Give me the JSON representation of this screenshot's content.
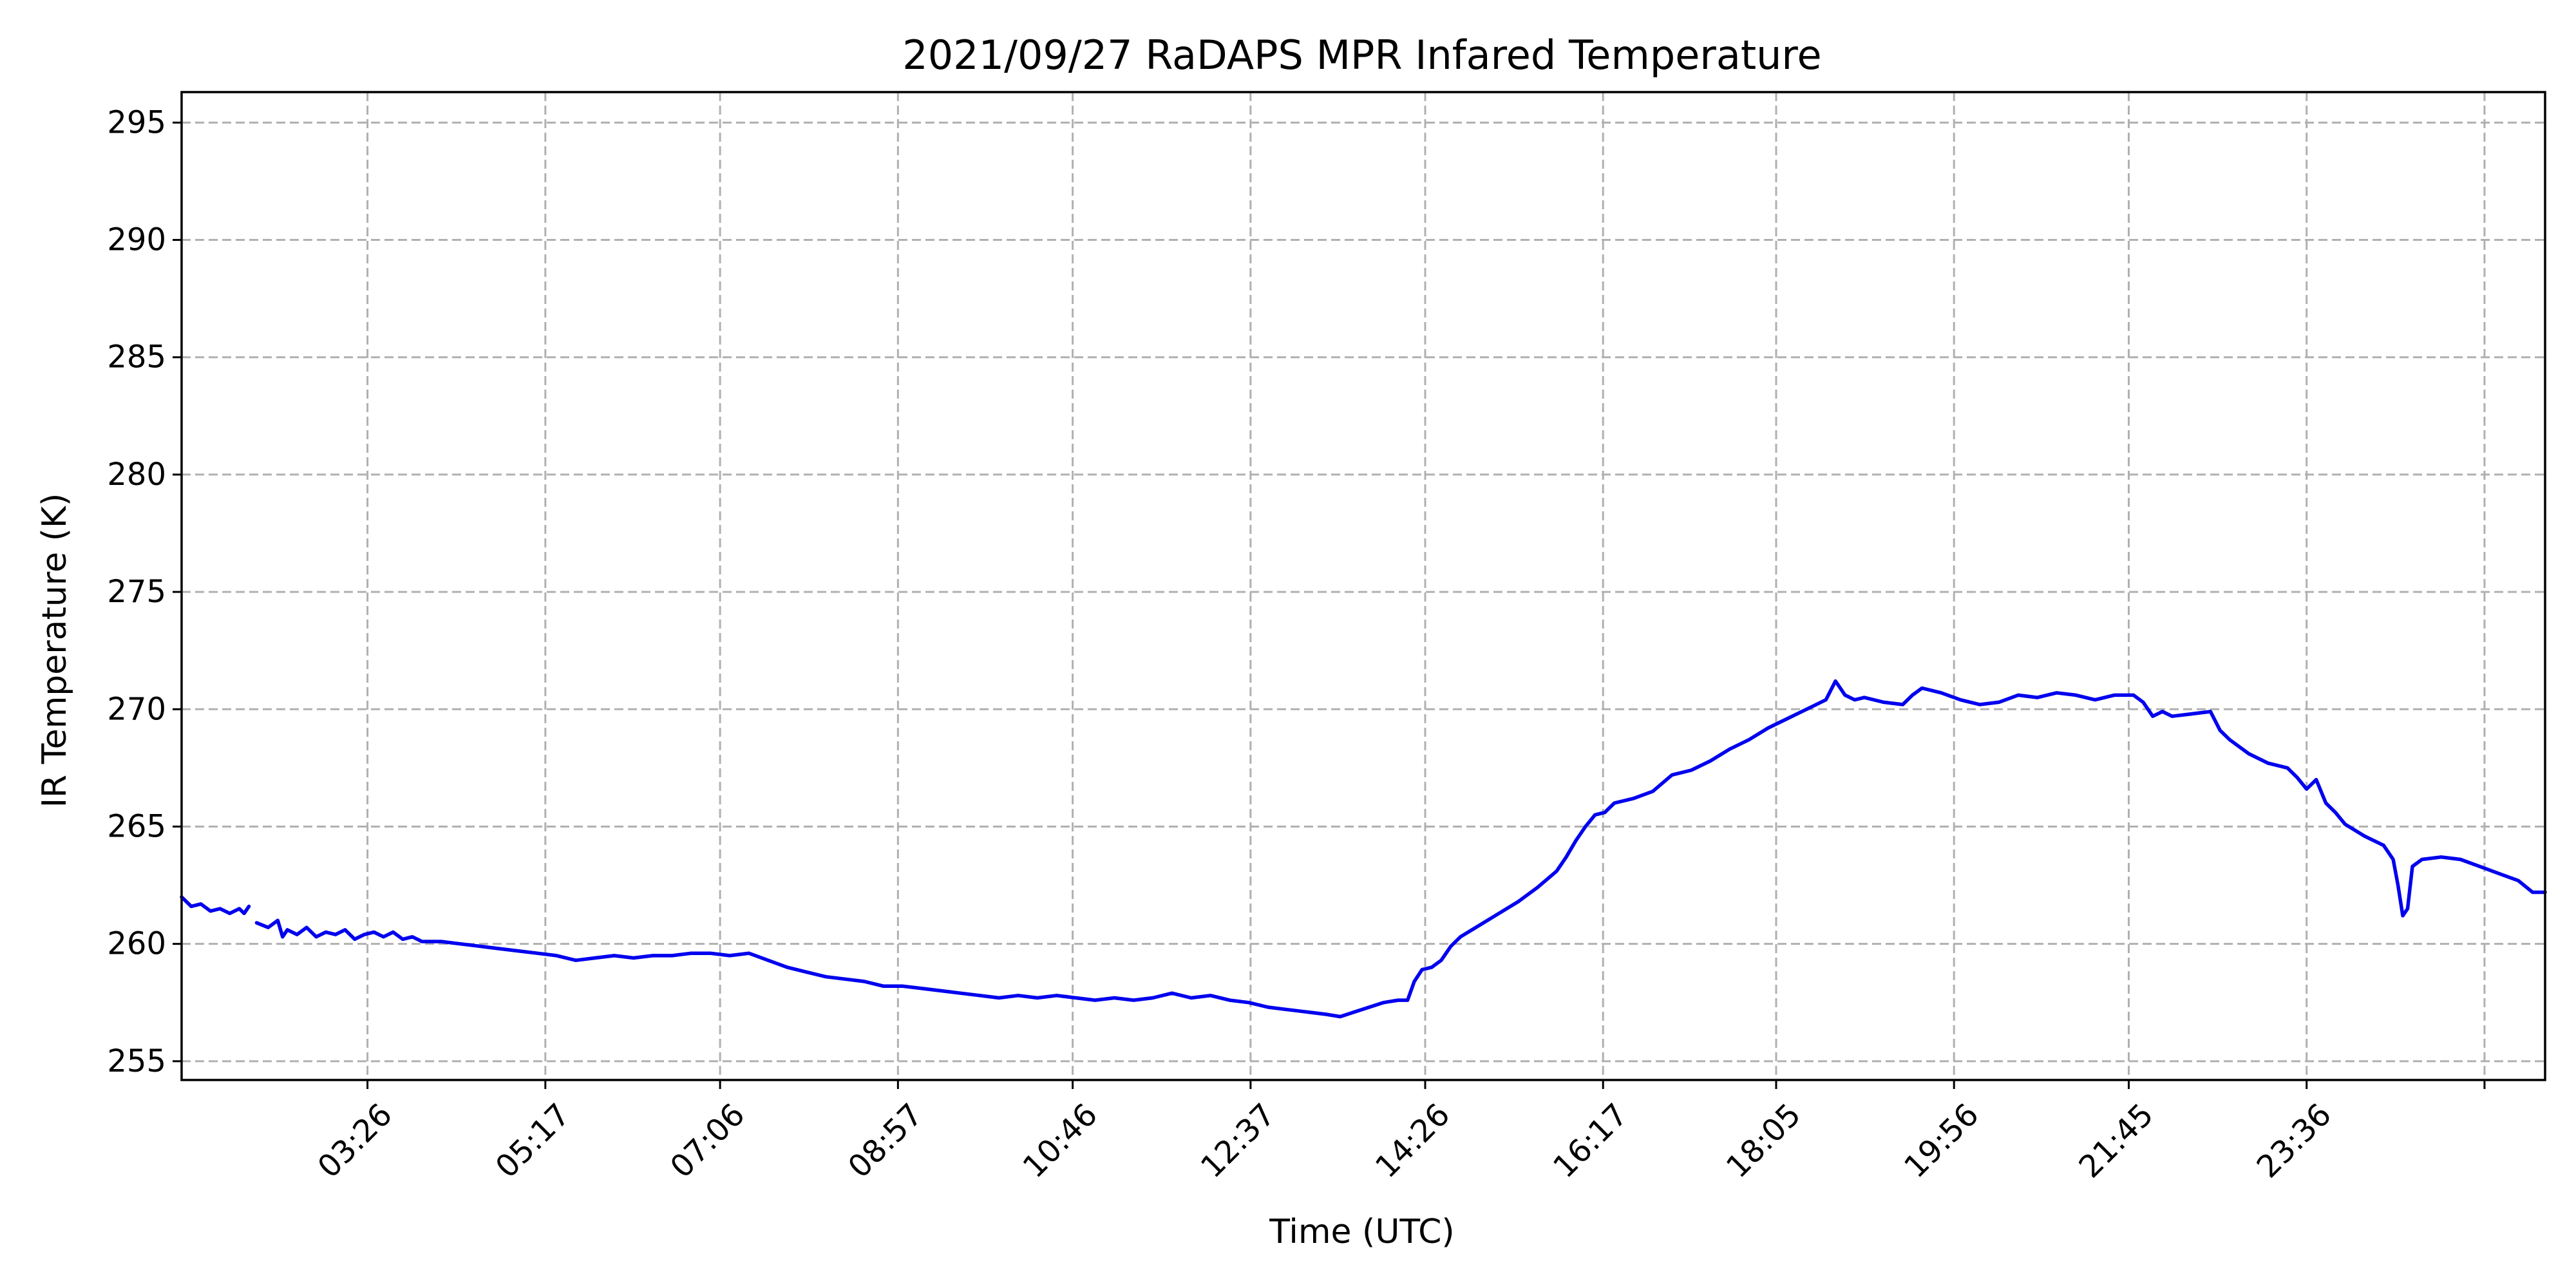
{
  "chart_data": {
    "type": "line",
    "title": "2021/09/27 RaDAPS MPR Infared Temperature",
    "xlabel": "Time (UTC)",
    "ylabel": "IR Temperature (K)",
    "x_unit": "hour_of_day",
    "xlim": [
      1.5,
      26.08
    ],
    "ylim": [
      254.2,
      296.3
    ],
    "x_ticks": [
      3.433,
      5.283,
      7.1,
      8.95,
      10.767,
      12.617,
      14.433,
      16.283,
      18.083,
      19.933,
      21.75,
      23.6,
      25.45
    ],
    "x_tick_labels": [
      "03:26",
      "05:17",
      "07:06",
      "08:57",
      "10:46",
      "12:37",
      "14:26",
      "16:17",
      "18:05",
      "19:56",
      "21:45",
      "23:36",
      ""
    ],
    "y_ticks": [
      255,
      260,
      265,
      270,
      275,
      280,
      285,
      290,
      295
    ],
    "y_tick_labels": [
      "255",
      "260",
      "265",
      "270",
      "275",
      "280",
      "285",
      "290",
      "295"
    ],
    "grid": true,
    "line_color": "#0000ee",
    "series": [
      {
        "segments": [
          [
            [
              1.5,
              262.0
            ],
            [
              1.6,
              261.6
            ],
            [
              1.7,
              261.7
            ],
            [
              1.8,
              261.4
            ],
            [
              1.9,
              261.5
            ],
            [
              2.0,
              261.3
            ],
            [
              2.1,
              261.5
            ],
            [
              2.15,
              261.3
            ],
            [
              2.2,
              261.6
            ]
          ],
          [
            [
              2.28,
              260.9
            ],
            [
              2.4,
              260.7
            ],
            [
              2.5,
              261.0
            ],
            [
              2.55,
              260.3
            ],
            [
              2.6,
              260.6
            ],
            [
              2.7,
              260.4
            ],
            [
              2.8,
              260.7
            ],
            [
              2.9,
              260.3
            ],
            [
              3.0,
              260.5
            ],
            [
              3.1,
              260.4
            ],
            [
              3.2,
              260.6
            ],
            [
              3.3,
              260.2
            ],
            [
              3.4,
              260.4
            ],
            [
              3.5,
              260.5
            ],
            [
              3.6,
              260.3
            ],
            [
              3.7,
              260.5
            ],
            [
              3.8,
              260.2
            ],
            [
              3.9,
              260.3
            ],
            [
              4.0,
              260.1
            ],
            [
              4.2,
              260.1
            ],
            [
              4.4,
              260.0
            ],
            [
              4.6,
              259.9
            ],
            [
              4.8,
              259.8
            ],
            [
              5.0,
              259.7
            ],
            [
              5.2,
              259.6
            ],
            [
              5.4,
              259.5
            ],
            [
              5.6,
              259.3
            ],
            [
              5.8,
              259.4
            ],
            [
              6.0,
              259.5
            ],
            [
              6.2,
              259.4
            ],
            [
              6.4,
              259.5
            ],
            [
              6.6,
              259.5
            ],
            [
              6.8,
              259.6
            ],
            [
              7.0,
              259.6
            ],
            [
              7.2,
              259.5
            ],
            [
              7.4,
              259.6
            ],
            [
              7.6,
              259.3
            ],
            [
              7.8,
              259.0
            ],
            [
              8.0,
              258.8
            ],
            [
              8.2,
              258.6
            ],
            [
              8.4,
              258.5
            ],
            [
              8.6,
              258.4
            ],
            [
              8.8,
              258.2
            ],
            [
              9.0,
              258.2
            ],
            [
              9.2,
              258.1
            ],
            [
              9.4,
              258.0
            ],
            [
              9.6,
              257.9
            ],
            [
              9.8,
              257.8
            ],
            [
              10.0,
              257.7
            ],
            [
              10.2,
              257.8
            ],
            [
              10.4,
              257.7
            ],
            [
              10.6,
              257.8
            ],
            [
              10.8,
              257.7
            ],
            [
              11.0,
              257.6
            ],
            [
              11.2,
              257.7
            ],
            [
              11.4,
              257.6
            ],
            [
              11.6,
              257.7
            ],
            [
              11.8,
              257.9
            ],
            [
              12.0,
              257.7
            ],
            [
              12.2,
              257.8
            ],
            [
              12.4,
              257.6
            ],
            [
              12.6,
              257.5
            ],
            [
              12.8,
              257.3
            ],
            [
              13.0,
              257.2
            ],
            [
              13.2,
              257.1
            ],
            [
              13.4,
              257.0
            ],
            [
              13.55,
              256.9
            ],
            [
              13.7,
              257.1
            ],
            [
              13.85,
              257.3
            ],
            [
              14.0,
              257.5
            ],
            [
              14.15,
              257.6
            ],
            [
              14.25,
              257.6
            ],
            [
              14.32,
              258.4
            ],
            [
              14.4,
              258.9
            ],
            [
              14.5,
              259.0
            ],
            [
              14.6,
              259.3
            ],
            [
              14.7,
              259.9
            ],
            [
              14.8,
              260.3
            ],
            [
              15.0,
              260.8
            ],
            [
              15.2,
              261.3
            ],
            [
              15.4,
              261.8
            ],
            [
              15.6,
              262.4
            ],
            [
              15.8,
              263.1
            ],
            [
              15.9,
              263.7
            ],
            [
              16.0,
              264.4
            ],
            [
              16.1,
              265.0
            ],
            [
              16.2,
              265.5
            ],
            [
              16.3,
              265.6
            ],
            [
              16.4,
              266.0
            ],
            [
              16.6,
              266.2
            ],
            [
              16.8,
              266.5
            ],
            [
              17.0,
              267.2
            ],
            [
              17.2,
              267.4
            ],
            [
              17.4,
              267.8
            ],
            [
              17.6,
              268.3
            ],
            [
              17.8,
              268.7
            ],
            [
              18.0,
              269.2
            ],
            [
              18.2,
              269.6
            ],
            [
              18.4,
              270.0
            ],
            [
              18.6,
              270.4
            ],
            [
              18.7,
              271.2
            ],
            [
              18.8,
              270.6
            ],
            [
              18.9,
              270.4
            ],
            [
              19.0,
              270.5
            ],
            [
              19.2,
              270.3
            ],
            [
              19.4,
              270.2
            ],
            [
              19.5,
              270.6
            ],
            [
              19.6,
              270.9
            ],
            [
              19.8,
              270.7
            ],
            [
              20.0,
              270.4
            ],
            [
              20.2,
              270.2
            ],
            [
              20.4,
              270.3
            ],
            [
              20.6,
              270.6
            ],
            [
              20.8,
              270.5
            ],
            [
              21.0,
              270.7
            ],
            [
              21.2,
              270.6
            ],
            [
              21.4,
              270.4
            ],
            [
              21.6,
              270.6
            ],
            [
              21.8,
              270.6
            ],
            [
              21.9,
              270.3
            ],
            [
              22.0,
              269.7
            ],
            [
              22.1,
              269.9
            ],
            [
              22.2,
              269.7
            ],
            [
              22.4,
              269.8
            ],
            [
              22.6,
              269.9
            ],
            [
              22.7,
              269.1
            ],
            [
              22.8,
              268.7
            ],
            [
              23.0,
              268.1
            ],
            [
              23.2,
              267.7
            ],
            [
              23.4,
              267.5
            ],
            [
              23.5,
              267.1
            ],
            [
              23.6,
              266.6
            ],
            [
              23.7,
              267.0
            ],
            [
              23.8,
              266.0
            ],
            [
              23.9,
              265.6
            ],
            [
              24.0,
              265.1
            ],
            [
              24.2,
              264.6
            ],
            [
              24.4,
              264.2
            ],
            [
              24.5,
              263.6
            ],
            [
              24.55,
              262.5
            ],
            [
              24.6,
              261.2
            ],
            [
              24.65,
              261.5
            ],
            [
              24.7,
              263.3
            ],
            [
              24.8,
              263.6
            ],
            [
              25.0,
              263.7
            ],
            [
              25.2,
              263.6
            ],
            [
              25.4,
              263.3
            ],
            [
              25.6,
              263.0
            ],
            [
              25.8,
              262.7
            ],
            [
              25.95,
              262.2
            ],
            [
              26.08,
              262.2
            ]
          ]
        ]
      }
    ]
  }
}
